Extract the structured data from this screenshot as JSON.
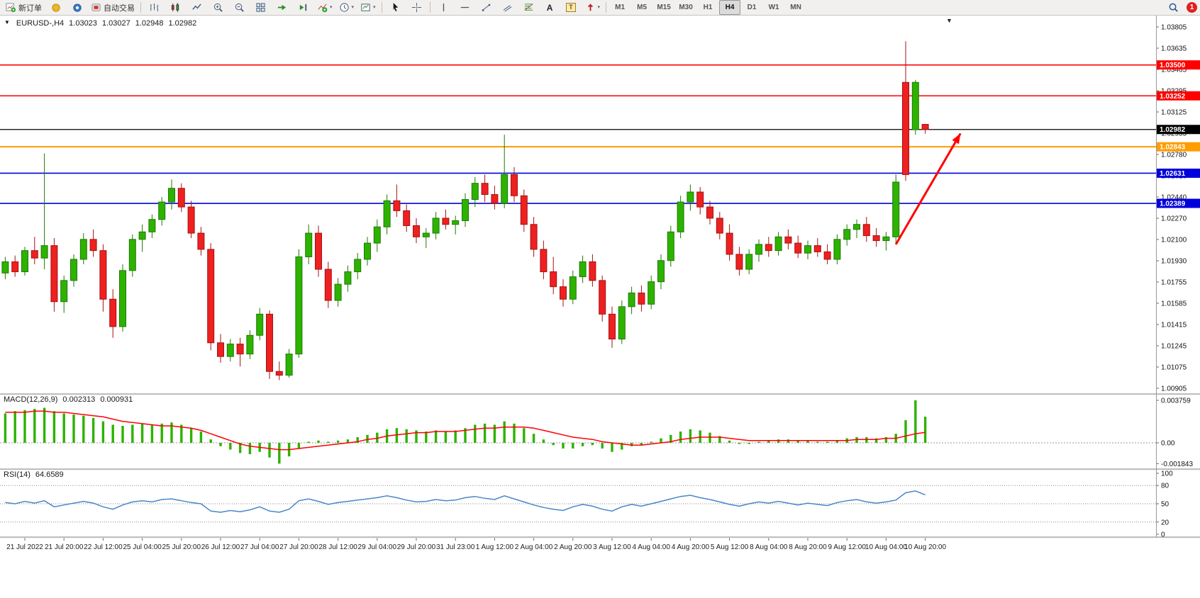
{
  "toolbar": {
    "new_order_label": "新订单",
    "autotrading_label": "自动交易",
    "timeframes": [
      "M1",
      "M5",
      "M15",
      "M30",
      "H1",
      "H4",
      "D1",
      "W1",
      "MN"
    ],
    "active_timeframe": "H4",
    "notification_count": "1"
  },
  "icons": {
    "symbol_dropdown": "▼",
    "chart_shift_marker": "▼",
    "caret": "▾",
    "text_tool": "A",
    "label_tool": "T"
  },
  "chart_header": {
    "symbol_period": "EURUSD-,H4",
    "open": "1.03023",
    "high": "1.03027",
    "low": "1.02948",
    "close": "1.02982"
  },
  "macd_panel": {
    "label": "MACD(12,26,9)",
    "main_value": "0.002313",
    "signal_value": "0.000931"
  },
  "rsi_panel": {
    "label": "RSI(14)",
    "value": "64.6589"
  },
  "price_axis": {
    "ticks": [
      "1.03805",
      "1.03635",
      "1.03465",
      "1.03295",
      "1.03125",
      "1.02955",
      "1.02780",
      "1.02610",
      "1.02440",
      "1.02270",
      "1.02100",
      "1.01930",
      "1.01755",
      "1.01585",
      "1.01415",
      "1.01245",
      "1.01075",
      "1.00905"
    ]
  },
  "time_axis": {
    "labels": [
      "21 Jul 2022",
      "21 Jul 20:00",
      "22 Jul 12:00",
      "25 Jul 04:00",
      "25 Jul 20:00",
      "26 Jul 12:00",
      "27 Jul 04:00",
      "27 Jul 20:00",
      "28 Jul 12:00",
      "29 Jul 04:00",
      "29 Jul 20:00",
      "31 Jul 23:00",
      "1 Aug 12:00",
      "2 Aug 04:00",
      "2 Aug 20:00",
      "3 Aug 12:00",
      "4 Aug 04:00",
      "4 Aug 20:00",
      "5 Aug 12:00",
      "8 Aug 04:00",
      "8 Aug 20:00",
      "9 Aug 12:00",
      "10 Aug 04:00",
      "10 Aug 20:00"
    ]
  },
  "chart_data": {
    "type": "candlestick",
    "symbol": "EURUSD-",
    "period": "H4",
    "price_range": {
      "min": 1.00905,
      "max": 1.03805
    },
    "colors": {
      "bull": "#2db200",
      "bull_border": "#1d7a00",
      "bear": "#ee2020",
      "bear_border": "#a51212",
      "macd_hist": "#2db200",
      "macd_signal": "#ff0000",
      "rsi_line": "#4a86c8",
      "arrow": "#ff0000"
    },
    "hlines": [
      {
        "price": 1.035,
        "color": "#ff0000",
        "width": 1.6,
        "label": "1.03500"
      },
      {
        "price": 1.03252,
        "color": "#ff0000",
        "width": 1.6,
        "label": "1.03252"
      },
      {
        "price": 1.02982,
        "color": "#000000",
        "width": 1.2,
        "label": "1.02982"
      },
      {
        "price": 1.02843,
        "color": "#ff9c00",
        "width": 2.0,
        "label": "1.02843"
      },
      {
        "price": 1.02631,
        "color": "#0000dd",
        "width": 1.6,
        "label": "1.02631"
      },
      {
        "price": 1.02389,
        "color": "#0000dd",
        "width": 1.6,
        "label": "1.02389"
      }
    ],
    "arrow": {
      "from_index": 91,
      "from_price": 1.0206,
      "to_index": 97.6,
      "to_price": 1.0295,
      "color": "#ff0000"
    },
    "candles": [
      [
        1.0183,
        1.0196,
        1.0178,
        1.0192
      ],
      [
        1.0192,
        1.0197,
        1.018,
        1.0184
      ],
      [
        1.0184,
        1.0204,
        1.0181,
        1.0201
      ],
      [
        1.0201,
        1.0212,
        1.019,
        1.0195
      ],
      [
        1.0195,
        1.0279,
        1.0186,
        1.0205
      ],
      [
        1.0205,
        1.0211,
        1.0152,
        1.016
      ],
      [
        1.016,
        1.0181,
        1.0151,
        1.0177
      ],
      [
        1.0177,
        1.0198,
        1.0172,
        1.0194
      ],
      [
        1.0194,
        1.0215,
        1.019,
        1.021
      ],
      [
        1.021,
        1.0218,
        1.0196,
        1.0201
      ],
      [
        1.0201,
        1.0206,
        1.0152,
        1.0162
      ],
      [
        1.0162,
        1.017,
        1.0131,
        1.014
      ],
      [
        1.014,
        1.019,
        1.0136,
        1.0185
      ],
      [
        1.0185,
        1.0214,
        1.018,
        1.021
      ],
      [
        1.021,
        1.0222,
        1.02,
        1.0216
      ],
      [
        1.0216,
        1.023,
        1.0211,
        1.0226
      ],
      [
        1.0226,
        1.0244,
        1.0221,
        1.024
      ],
      [
        1.024,
        1.0258,
        1.0234,
        1.0251
      ],
      [
        1.0251,
        1.0255,
        1.0232,
        1.0236
      ],
      [
        1.0236,
        1.0241,
        1.0211,
        1.0215
      ],
      [
        1.0215,
        1.022,
        1.0197,
        1.0202
      ],
      [
        1.0202,
        1.0207,
        1.0121,
        1.0127
      ],
      [
        1.0127,
        1.0134,
        1.0111,
        1.0116
      ],
      [
        1.0116,
        1.013,
        1.0112,
        1.0126
      ],
      [
        1.0126,
        1.0131,
        1.0108,
        1.0118
      ],
      [
        1.0118,
        1.0137,
        1.0114,
        1.0133
      ],
      [
        1.0133,
        1.0155,
        1.0129,
        1.015
      ],
      [
        1.015,
        1.0153,
        1.0098,
        1.0104
      ],
      [
        1.0104,
        1.0112,
        1.0097,
        1.0101
      ],
      [
        1.0101,
        1.0122,
        1.0099,
        1.0118
      ],
      [
        1.0118,
        1.0202,
        1.0115,
        1.0196
      ],
      [
        1.0196,
        1.0222,
        1.019,
        1.0215
      ],
      [
        1.0215,
        1.0221,
        1.018,
        1.0186
      ],
      [
        1.0186,
        1.0192,
        1.0155,
        1.0161
      ],
      [
        1.0161,
        1.0179,
        1.0156,
        1.0174
      ],
      [
        1.0174,
        1.0189,
        1.0168,
        1.0184
      ],
      [
        1.0184,
        1.0199,
        1.0178,
        1.0194
      ],
      [
        1.0194,
        1.0212,
        1.0189,
        1.0207
      ],
      [
        1.0207,
        1.0226,
        1.02,
        1.022
      ],
      [
        1.022,
        1.0246,
        1.0214,
        1.0241
      ],
      [
        1.0241,
        1.0254,
        1.0228,
        1.0233
      ],
      [
        1.0233,
        1.0238,
        1.0216,
        1.0221
      ],
      [
        1.0221,
        1.0227,
        1.0207,
        1.0212
      ],
      [
        1.0212,
        1.0219,
        1.0203,
        1.0215
      ],
      [
        1.0215,
        1.0232,
        1.021,
        1.0227
      ],
      [
        1.0227,
        1.0234,
        1.0218,
        1.0222
      ],
      [
        1.0222,
        1.0229,
        1.0214,
        1.0225
      ],
      [
        1.0225,
        1.0247,
        1.022,
        1.0242
      ],
      [
        1.0242,
        1.026,
        1.0236,
        1.0255
      ],
      [
        1.0255,
        1.0262,
        1.024,
        1.0246
      ],
      [
        1.0246,
        1.0253,
        1.0234,
        1.0239
      ],
      [
        1.0239,
        1.0294,
        1.0235,
        1.0262
      ],
      [
        1.0262,
        1.0268,
        1.024,
        1.0245
      ],
      [
        1.0245,
        1.025,
        1.0216,
        1.0222
      ],
      [
        1.0222,
        1.0228,
        1.0196,
        1.0202
      ],
      [
        1.0202,
        1.0209,
        1.0178,
        1.0184
      ],
      [
        1.0184,
        1.0196,
        1.0166,
        1.0172
      ],
      [
        1.0172,
        1.0178,
        1.0156,
        1.0162
      ],
      [
        1.0162,
        1.0185,
        1.0158,
        1.018
      ],
      [
        1.018,
        1.0197,
        1.0175,
        1.0192
      ],
      [
        1.0192,
        1.0198,
        1.0172,
        1.0177
      ],
      [
        1.0177,
        1.0181,
        1.0144,
        1.015
      ],
      [
        1.015,
        1.0156,
        1.0123,
        1.013
      ],
      [
        1.013,
        1.0161,
        1.0126,
        1.0156
      ],
      [
        1.0156,
        1.0172,
        1.015,
        1.0167
      ],
      [
        1.0167,
        1.0173,
        1.0152,
        1.0158
      ],
      [
        1.0158,
        1.0181,
        1.0154,
        1.0176
      ],
      [
        1.0176,
        1.0198,
        1.017,
        1.0193
      ],
      [
        1.0193,
        1.0221,
        1.0188,
        1.0216
      ],
      [
        1.0216,
        1.0245,
        1.0211,
        1.024
      ],
      [
        1.024,
        1.0254,
        1.0233,
        1.0248
      ],
      [
        1.0248,
        1.0252,
        1.023,
        1.0236
      ],
      [
        1.0236,
        1.0241,
        1.0222,
        1.0227
      ],
      [
        1.0227,
        1.0232,
        1.021,
        1.0215
      ],
      [
        1.0215,
        1.0222,
        1.0193,
        1.0198
      ],
      [
        1.0198,
        1.0204,
        1.0181,
        1.0186
      ],
      [
        1.0186,
        1.0202,
        1.0182,
        1.0198
      ],
      [
        1.0198,
        1.021,
        1.0192,
        1.0206
      ],
      [
        1.0206,
        1.0212,
        1.0196,
        1.0201
      ],
      [
        1.0201,
        1.0216,
        1.0197,
        1.0212
      ],
      [
        1.0212,
        1.0218,
        1.0202,
        1.0207
      ],
      [
        1.0207,
        1.0213,
        1.0195,
        1.0199
      ],
      [
        1.0199,
        1.0209,
        1.0194,
        1.0205
      ],
      [
        1.0205,
        1.0211,
        1.0196,
        1.02
      ],
      [
        1.02,
        1.0206,
        1.019,
        1.0194
      ],
      [
        1.0194,
        1.0214,
        1.019,
        1.021
      ],
      [
        1.021,
        1.0222,
        1.0205,
        1.0218
      ],
      [
        1.0218,
        1.0226,
        1.0211,
        1.0222
      ],
      [
        1.0222,
        1.0228,
        1.0208,
        1.0213
      ],
      [
        1.0213,
        1.0219,
        1.0204,
        1.0209
      ],
      [
        1.0209,
        1.0216,
        1.0201,
        1.0212
      ],
      [
        1.0212,
        1.0262,
        1.0206,
        1.0256
      ],
      [
        1.0336,
        1.0369,
        1.0257,
        1.0262
      ],
      [
        1.0298,
        1.0338,
        1.0294,
        1.0336
      ],
      [
        1.03023,
        1.03027,
        1.02948,
        1.02982
      ]
    ],
    "macd": {
      "axis": [
        "0.003759",
        "0.00",
        "-0.001843"
      ],
      "histogram": [
        0.0026,
        0.0028,
        0.0029,
        0.003,
        0.0031,
        0.0028,
        0.0026,
        0.0025,
        0.0024,
        0.0022,
        0.0019,
        0.0016,
        0.0015,
        0.0016,
        0.0017,
        0.0016,
        0.0017,
        0.0018,
        0.0016,
        0.0013,
        0.001,
        0.0003,
        -0.0003,
        -0.0006,
        -0.0009,
        -0.001,
        -0.0008,
        -0.0013,
        -0.00184,
        -0.0012,
        -0.0005,
        0.0001,
        0.0002,
        0.0001,
        0.0002,
        0.0003,
        0.0005,
        0.0007,
        0.0009,
        0.0012,
        0.0013,
        0.0012,
        0.0011,
        0.001,
        0.0011,
        0.001,
        0.0011,
        0.0013,
        0.0016,
        0.0017,
        0.0016,
        0.0019,
        0.0017,
        0.0013,
        0.0008,
        0.0003,
        -0.0002,
        -0.0005,
        -0.0005,
        -0.0003,
        -0.0002,
        -0.0005,
        -0.0008,
        -0.0006,
        -0.0003,
        -0.0002,
        0.0001,
        0.0004,
        0.0007,
        0.001,
        0.0012,
        0.0011,
        0.0009,
        0.0006,
        0.0002,
        -0.0001,
        -0.0001,
        0.0001,
        0.0002,
        0.0003,
        0.0003,
        0.0002,
        0.0002,
        0.0001,
        0.0001,
        0.0002,
        0.0004,
        0.0005,
        0.0005,
        0.0004,
        0.0005,
        0.0008,
        0.002,
        0.00376,
        0.00231
      ],
      "signal": [
        0.0027,
        0.0027,
        0.0027,
        0.0028,
        0.0028,
        0.0027,
        0.0027,
        0.0026,
        0.0025,
        0.0024,
        0.0023,
        0.0021,
        0.0019,
        0.0018,
        0.0017,
        0.0016,
        0.0015,
        0.0015,
        0.0014,
        0.0013,
        0.0011,
        0.0008,
        0.0005,
        0.0002,
        -0.0001,
        -0.0003,
        -0.0004,
        -0.0005,
        -0.0006,
        -0.0006,
        -0.0005,
        -0.0004,
        -0.0003,
        -0.0002,
        -0.0001,
        0.0,
        0.0001,
        0.0003,
        0.0004,
        0.0006,
        0.0007,
        0.0008,
        0.0009,
        0.0009,
        0.001,
        0.001,
        0.001,
        0.0011,
        0.0012,
        0.0013,
        0.0013,
        0.0014,
        0.0014,
        0.0014,
        0.0013,
        0.0011,
        0.0009,
        0.0007,
        0.0005,
        0.0004,
        0.0003,
        0.0001,
        0.0,
        -0.0001,
        -0.0002,
        -0.0002,
        -0.0001,
        0.0,
        0.0001,
        0.0003,
        0.0004,
        0.0005,
        0.0005,
        0.0005,
        0.0004,
        0.0003,
        0.0002,
        0.0002,
        0.0002,
        0.0002,
        0.0002,
        0.0002,
        0.0002,
        0.0002,
        0.0002,
        0.0002,
        0.0002,
        0.0003,
        0.0003,
        0.0003,
        0.0004,
        0.0004,
        0.0006,
        0.0008,
        0.00093
      ]
    },
    "rsi": {
      "axis": [
        "100",
        "80",
        "50",
        "20",
        "0"
      ],
      "levels": [
        80,
        50,
        20
      ],
      "range": [
        0,
        100
      ],
      "values": [
        52,
        50,
        54,
        51,
        55,
        45,
        48,
        51,
        54,
        51,
        45,
        41,
        48,
        53,
        55,
        53,
        57,
        58,
        55,
        52,
        50,
        38,
        36,
        39,
        37,
        40,
        45,
        38,
        36,
        41,
        55,
        58,
        54,
        49,
        52,
        54,
        56,
        58,
        60,
        63,
        60,
        56,
        53,
        54,
        57,
        55,
        56,
        60,
        62,
        59,
        57,
        63,
        58,
        53,
        48,
        44,
        41,
        39,
        45,
        49,
        46,
        41,
        38,
        45,
        49,
        46,
        50,
        54,
        58,
        62,
        64,
        60,
        57,
        53,
        49,
        46,
        50,
        53,
        51,
        54,
        51,
        48,
        51,
        49,
        47,
        52,
        55,
        57,
        53,
        51,
        53,
        56,
        68,
        71,
        64.66
      ]
    }
  }
}
